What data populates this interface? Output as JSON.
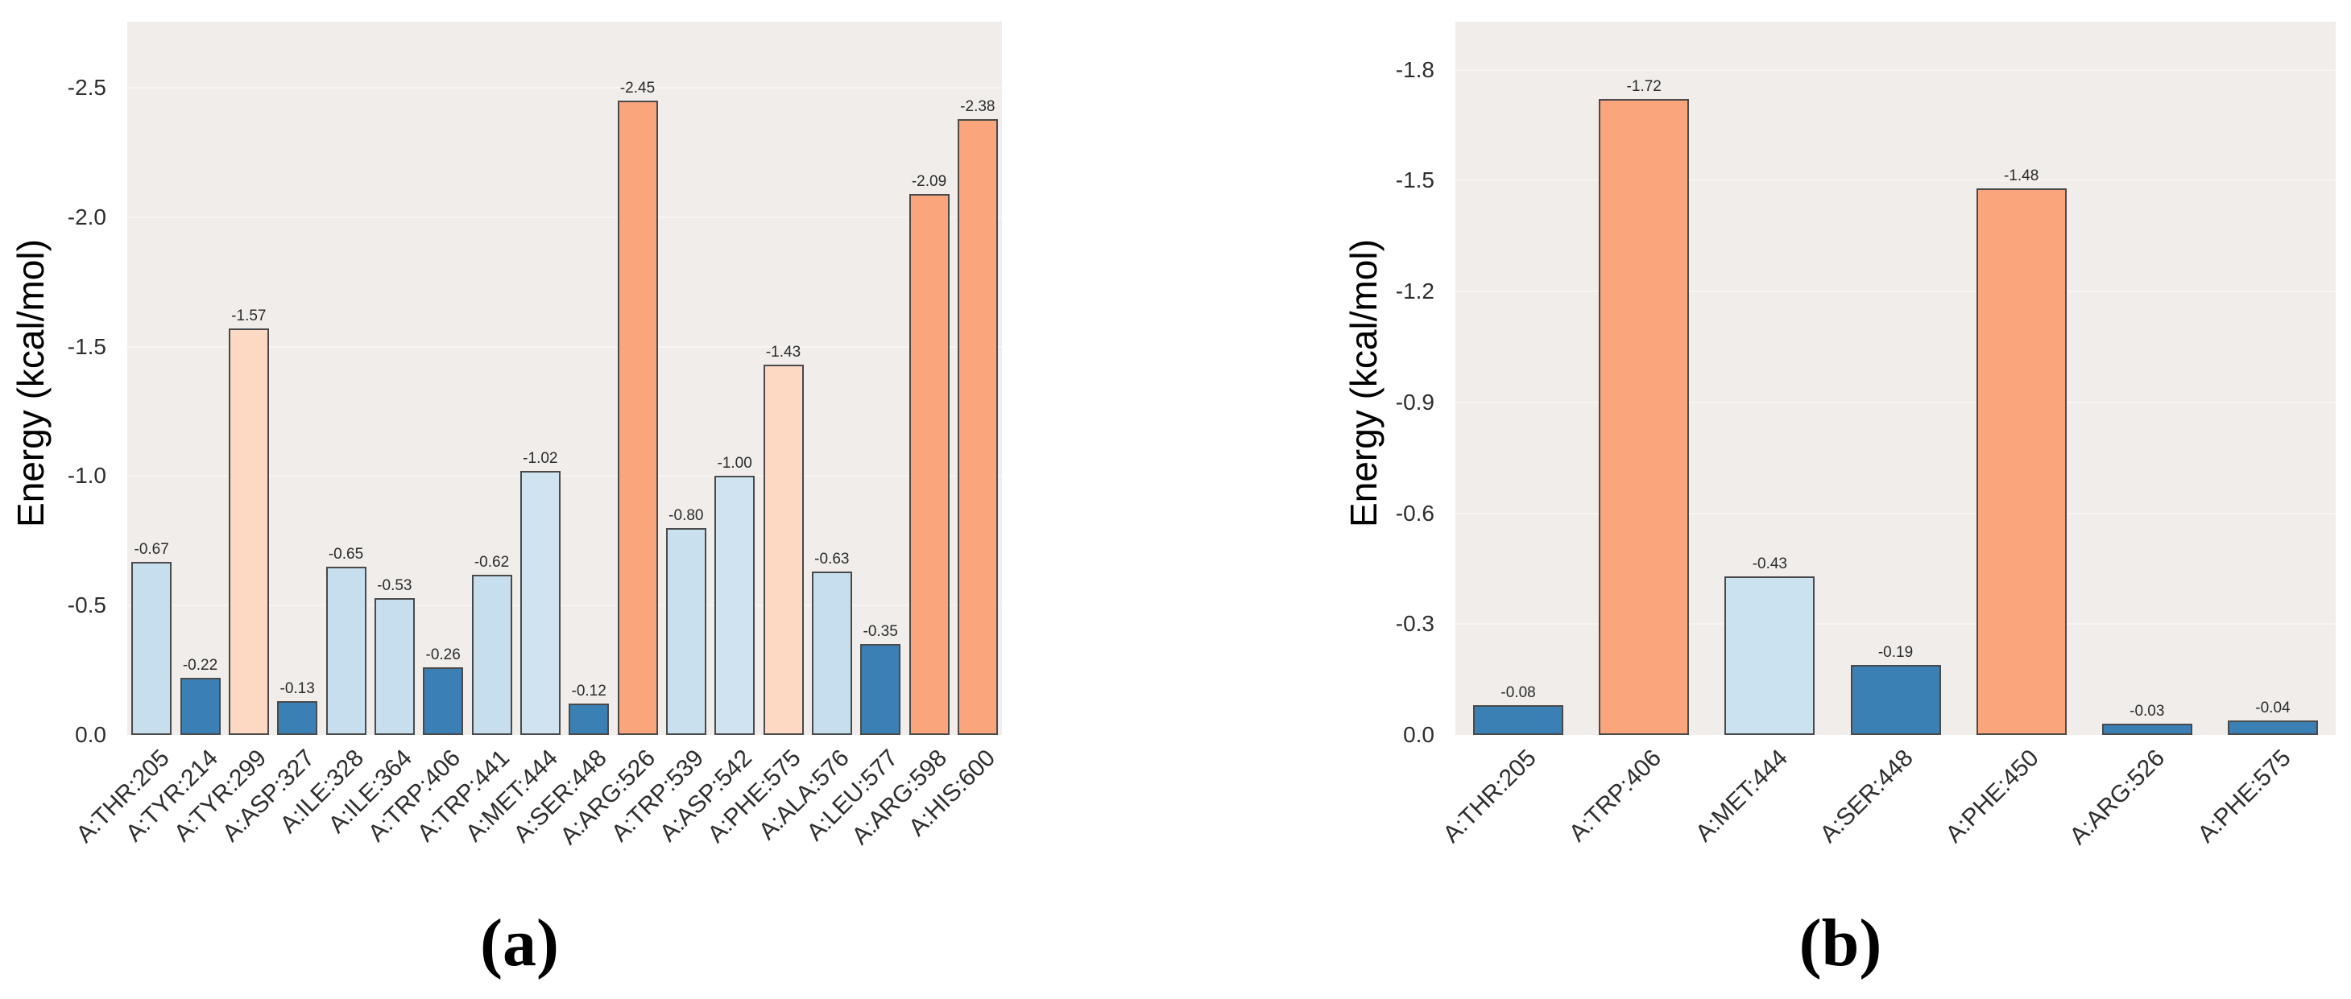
{
  "figure": {
    "description": "Two inverted-axis bar charts of per-residue interaction energies"
  },
  "palette": {
    "strong_orange": "#fba57c",
    "light_peach": "#fdd8c3",
    "light_blue": "#c6deee",
    "lighter_blue": "#cfe3f1",
    "dark_blue": "#3b80b5",
    "plot_background": "#f0edea",
    "bar_edge": "#4a4a4a"
  },
  "chart_data": [
    {
      "panel": "a",
      "type": "bar",
      "caption": "(a)",
      "ylabel": "Energy (kcal/mol)",
      "xlabel": "",
      "grid": true,
      "axis_inverted": true,
      "ylim": [
        0,
        -2.755
      ],
      "ytick_labels": [
        "0.0",
        "-0.5",
        "-1.0",
        "-1.5",
        "-2.0",
        "-2.5"
      ],
      "categories": [
        "A:THR:205",
        "A:TYR:214",
        "A:TYR:299",
        "A:ASP:327",
        "A:ILE:328",
        "A:ILE:364",
        "A:TRP:406",
        "A:TRP:441",
        "A:MET:444",
        "A:SER:448",
        "A:ARG:526",
        "A:TRP:539",
        "A:ASP:542",
        "A:PHE:575",
        "A:ALA:576",
        "A:LEU:577",
        "A:ARG:598",
        "A:HIS:600"
      ],
      "values": [
        -0.67,
        -0.22,
        -1.57,
        -0.13,
        -0.65,
        -0.53,
        -0.26,
        -0.62,
        -1.02,
        -0.12,
        -2.45,
        -0.8,
        -1.0,
        -1.43,
        -0.63,
        -0.35,
        -2.09,
        -2.38
      ],
      "bar_labels": [
        "-0.67",
        "-0.22",
        "-1.57",
        "-0.13",
        "-0.65",
        "-0.53",
        "-0.26",
        "-0.62",
        "-1.02",
        "-0.12",
        "-2.45",
        "-0.80",
        "-1.00",
        "-1.43",
        "-0.63",
        "-0.35",
        "-2.09",
        "-2.38"
      ],
      "colors": [
        "#c6deee",
        "#3b80b5",
        "#fdd8c3",
        "#3b80b5",
        "#c6deee",
        "#c6deee",
        "#3b80b5",
        "#c6deee",
        "#cfe3f1",
        "#3b80b5",
        "#fba57c",
        "#c9e0ef",
        "#cfe3f1",
        "#fdd8c3",
        "#c6deee",
        "#3b80b5",
        "#fba57c",
        "#fba57c"
      ]
    },
    {
      "panel": "b",
      "type": "bar",
      "caption": "(b)",
      "ylabel": "Energy (kcal/mol)",
      "xlabel": "",
      "grid": true,
      "axis_inverted": true,
      "ylim": [
        0,
        -1.93
      ],
      "ytick_labels": [
        "0.0",
        "-0.3",
        "-0.6",
        "-0.9",
        "-1.2",
        "-1.5",
        "-1.8"
      ],
      "categories": [
        "A:THR:205",
        "A:TRP:406",
        "A:MET:444",
        "A:SER:448",
        "A:PHE:450",
        "A:ARG:526",
        "A:PHE:575"
      ],
      "values": [
        -0.08,
        -1.72,
        -0.43,
        -0.19,
        -1.48,
        -0.03,
        -0.04
      ],
      "bar_labels": [
        "-0.08",
        "-1.72",
        "-0.43",
        "-0.19",
        "-1.48",
        "-0.03",
        "-0.04"
      ],
      "colors": [
        "#3b80b5",
        "#fba57c",
        "#cbe2f1",
        "#3b80b5",
        "#fba57c",
        "#3b80b5",
        "#3b80b5"
      ]
    }
  ]
}
